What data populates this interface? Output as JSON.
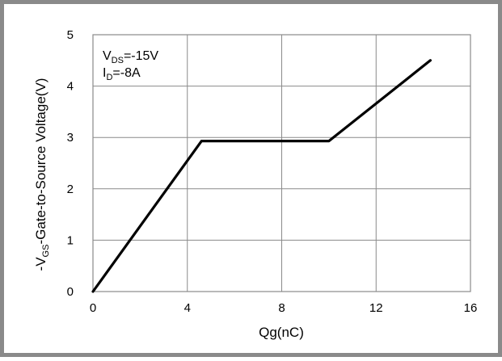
{
  "chart_data": {
    "type": "line",
    "title": "",
    "xlabel": "Qg(nC)",
    "ylabel_main": "-V",
    "ylabel_sub": "GS",
    "ylabel_rest": "-Gate-to-Source Voltage(V)",
    "xlim": [
      0,
      16
    ],
    "ylim": [
      0,
      5
    ],
    "x_ticks": [
      0,
      4,
      8,
      12,
      16
    ],
    "y_ticks": [
      0,
      1,
      2,
      3,
      4,
      5
    ],
    "grid": true,
    "series": [
      {
        "x": [
          0,
          4.6,
          10,
          14.3
        ],
        "y": [
          0,
          2.93,
          2.93,
          4.5
        ],
        "color": "#000000"
      }
    ],
    "annotations": [
      {
        "main": "V",
        "sub": "DS",
        "rest": "=-15V"
      },
      {
        "main": "I",
        "sub": "D",
        "rest": "=-8A"
      }
    ]
  }
}
